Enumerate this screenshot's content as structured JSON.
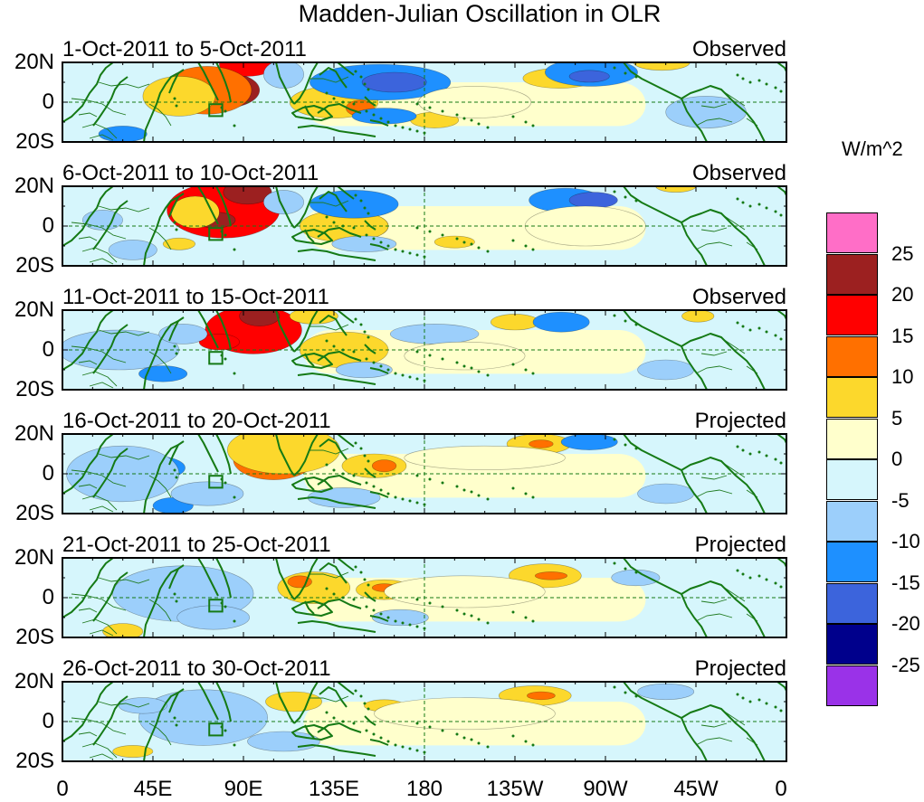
{
  "title": "Madden-Julian Oscillation in OLR",
  "colorbar": {
    "unit": "W/m^2",
    "boxes": [
      {
        "color": "#ff6ec7"
      },
      {
        "color": "#9c2020"
      },
      {
        "color": "#ff0000"
      },
      {
        "color": "#ff7000"
      },
      {
        "color": "#fcd82c"
      },
      {
        "color": "#ffffcc"
      },
      {
        "color": "#d6f6fc"
      },
      {
        "color": "#9ccffb"
      },
      {
        "color": "#1e90ff"
      },
      {
        "color": "#3c64dc"
      },
      {
        "color": "#00008c"
      },
      {
        "color": "#9a32e8"
      }
    ],
    "labels": [
      "25",
      "20",
      "15",
      "10",
      "5",
      "0",
      "-5",
      "-10",
      "-15",
      "-20",
      "-25"
    ]
  },
  "lat_labels": [
    "20N",
    "0",
    "20S"
  ],
  "lon_labels": [
    "0",
    "45E",
    "90E",
    "135E",
    "180",
    "135W",
    "90W",
    "45W",
    "0"
  ],
  "panels": [
    {
      "date_range": "1-Oct-2011 to 5-Oct-2011",
      "status": "Observed",
      "anomalies": [
        {
          "lon": 80,
          "lat": 6,
          "rx": 18,
          "ry": 9,
          "v": 20
        },
        {
          "lon": 92,
          "lat": 19,
          "rx": 14,
          "ry": 6,
          "v": 17
        },
        {
          "lon": 72,
          "lat": 6,
          "rx": 22,
          "ry": 12,
          "v": 12
        },
        {
          "lon": 58,
          "lat": 3,
          "rx": 18,
          "ry": 10,
          "v": 5
        },
        {
          "lon": 135,
          "lat": 0,
          "rx": 22,
          "ry": 8,
          "v": 6
        },
        {
          "lon": 148,
          "lat": -3,
          "rx": 7,
          "ry": 4,
          "v": 11
        },
        {
          "lon": 185,
          "lat": -9,
          "rx": 12,
          "ry": 4,
          "v": 6
        },
        {
          "lon": 247,
          "lat": 12,
          "rx": 18,
          "ry": 5,
          "v": 6
        },
        {
          "lon": 298,
          "lat": 20,
          "rx": 14,
          "ry": 4,
          "v": 9
        },
        {
          "lon": 158,
          "lat": 10,
          "rx": 35,
          "ry": 9,
          "v": -12
        },
        {
          "lon": 165,
          "lat": 10,
          "rx": 16,
          "ry": 5,
          "v": -17
        },
        {
          "lon": 263,
          "lat": 15,
          "rx": 23,
          "ry": 7,
          "v": -13
        },
        {
          "lon": 262,
          "lat": 13,
          "rx": 10,
          "ry": 3,
          "v": -17
        },
        {
          "lon": 160,
          "lat": -7,
          "rx": 16,
          "ry": 4,
          "v": -10
        },
        {
          "lon": 30,
          "lat": -16,
          "rx": 12,
          "ry": 4,
          "v": -13
        },
        {
          "lon": 110,
          "lat": 14,
          "rx": 10,
          "ry": 7,
          "v": -7
        },
        {
          "lon": 320,
          "lat": -5,
          "rx": 20,
          "ry": 8,
          "v": -5
        },
        {
          "lon": 205,
          "lat": 0,
          "rx": 28,
          "ry": 8,
          "v": 3
        }
      ]
    },
    {
      "date_range": "6-Oct-2011 to 10-Oct-2011",
      "status": "Observed",
      "anomalies": [
        {
          "lon": 80,
          "lat": 8,
          "rx": 28,
          "ry": 14,
          "v": 16
        },
        {
          "lon": 92,
          "lat": 17,
          "rx": 12,
          "ry": 6,
          "v": 22
        },
        {
          "lon": 76,
          "lat": 3,
          "rx": 10,
          "ry": 4,
          "v": 21
        },
        {
          "lon": 66,
          "lat": 7,
          "rx": 12,
          "ry": 8,
          "v": 7
        },
        {
          "lon": 150,
          "lat": 0,
          "rx": 12,
          "ry": 6,
          "v": 12
        },
        {
          "lon": 140,
          "lat": 0,
          "rx": 22,
          "ry": 8,
          "v": 6
        },
        {
          "lon": 58,
          "lat": -9,
          "rx": 8,
          "ry": 3,
          "v": 8
        },
        {
          "lon": 195,
          "lat": -8,
          "rx": 10,
          "ry": 3,
          "v": 6
        },
        {
          "lon": 145,
          "lat": 11,
          "rx": 22,
          "ry": 7,
          "v": -12
        },
        {
          "lon": 250,
          "lat": 13,
          "rx": 18,
          "ry": 6,
          "v": -14
        },
        {
          "lon": 264,
          "lat": 13,
          "rx": 12,
          "ry": 4,
          "v": -17
        },
        {
          "lon": 150,
          "lat": -9,
          "rx": 16,
          "ry": 4,
          "v": -8
        },
        {
          "lon": 110,
          "lat": 12,
          "rx": 10,
          "ry": 6,
          "v": -7
        },
        {
          "lon": 35,
          "lat": -12,
          "rx": 12,
          "ry": 5,
          "v": -7
        },
        {
          "lon": 20,
          "lat": 3,
          "rx": 10,
          "ry": 5,
          "v": -7
        },
        {
          "lon": 260,
          "lat": 0,
          "rx": 30,
          "ry": 10,
          "v": 3
        },
        {
          "lon": 305,
          "lat": 20,
          "rx": 10,
          "ry": 3,
          "v": 8
        }
      ]
    },
    {
      "date_range": "11-Oct-2011 to 15-Oct-2011",
      "status": "Observed",
      "anomalies": [
        {
          "lon": 95,
          "lat": 10,
          "rx": 24,
          "ry": 12,
          "v": 17
        },
        {
          "lon": 98,
          "lat": 17,
          "rx": 10,
          "ry": 5,
          "v": 22
        },
        {
          "lon": 78,
          "lat": 4,
          "rx": 10,
          "ry": 4,
          "v": 19
        },
        {
          "lon": 150,
          "lat": 0,
          "rx": 10,
          "ry": 5,
          "v": 12
        },
        {
          "lon": 140,
          "lat": 0,
          "rx": 22,
          "ry": 9,
          "v": 6
        },
        {
          "lon": 125,
          "lat": 17,
          "rx": 12,
          "ry": 4,
          "v": 6
        },
        {
          "lon": 225,
          "lat": 14,
          "rx": 12,
          "ry": 4,
          "v": 6
        },
        {
          "lon": 316,
          "lat": 17,
          "rx": 8,
          "ry": 3,
          "v": 7
        },
        {
          "lon": 28,
          "lat": 0,
          "rx": 30,
          "ry": 10,
          "v": -7
        },
        {
          "lon": 50,
          "lat": -12,
          "rx": 12,
          "ry": 4,
          "v": -12
        },
        {
          "lon": 60,
          "lat": 8,
          "rx": 12,
          "ry": 5,
          "v": -7
        },
        {
          "lon": 248,
          "lat": 14,
          "rx": 14,
          "ry": 5,
          "v": -13
        },
        {
          "lon": 185,
          "lat": 8,
          "rx": 22,
          "ry": 5,
          "v": -7
        },
        {
          "lon": 150,
          "lat": -10,
          "rx": 14,
          "ry": 4,
          "v": -8
        },
        {
          "lon": 300,
          "lat": -10,
          "rx": 14,
          "ry": 5,
          "v": -6
        },
        {
          "lon": 200,
          "lat": -3,
          "rx": 30,
          "ry": 7,
          "v": 2
        }
      ]
    },
    {
      "date_range": "16-Oct-2011 to 20-Oct-2011",
      "status": "Projected",
      "anomalies": [
        {
          "lon": 105,
          "lat": 7,
          "rx": 20,
          "ry": 10,
          "v": 13
        },
        {
          "lon": 103,
          "lat": 13,
          "rx": 8,
          "ry": 4,
          "v": 20
        },
        {
          "lon": 110,
          "lat": 12,
          "rx": 28,
          "ry": 12,
          "v": 6
        },
        {
          "lon": 155,
          "lat": 4,
          "rx": 16,
          "ry": 6,
          "v": 6
        },
        {
          "lon": 160,
          "lat": 4,
          "rx": 6,
          "ry": 3,
          "v": 11
        },
        {
          "lon": 237,
          "lat": 15,
          "rx": 16,
          "ry": 5,
          "v": 7
        },
        {
          "lon": 238,
          "lat": 15,
          "rx": 6,
          "ry": 2,
          "v": 12
        },
        {
          "lon": 210,
          "lat": 8,
          "rx": 40,
          "ry": 6,
          "v": 2
        },
        {
          "lon": 45,
          "lat": 3,
          "rx": 16,
          "ry": 6,
          "v": -12
        },
        {
          "lon": 30,
          "lat": 0,
          "rx": 28,
          "ry": 14,
          "v": -6
        },
        {
          "lon": 55,
          "lat": -16,
          "rx": 10,
          "ry": 4,
          "v": -12
        },
        {
          "lon": 262,
          "lat": 16,
          "rx": 14,
          "ry": 4,
          "v": -12
        },
        {
          "lon": 72,
          "lat": -10,
          "rx": 18,
          "ry": 6,
          "v": -7
        },
        {
          "lon": 140,
          "lat": -12,
          "rx": 18,
          "ry": 5,
          "v": -6
        },
        {
          "lon": 300,
          "lat": -10,
          "rx": 14,
          "ry": 5,
          "v": -6
        }
      ]
    },
    {
      "date_range": "21-Oct-2011 to 25-Oct-2011",
      "status": "Projected",
      "anomalies": [
        {
          "lon": 125,
          "lat": 5,
          "rx": 18,
          "ry": 8,
          "v": 7
        },
        {
          "lon": 118,
          "lat": 8,
          "rx": 6,
          "ry": 3,
          "v": 11
        },
        {
          "lon": 160,
          "lat": 4,
          "rx": 14,
          "ry": 5,
          "v": 6
        },
        {
          "lon": 160,
          "lat": 5,
          "rx": 6,
          "ry": 2,
          "v": 11
        },
        {
          "lon": 240,
          "lat": 11,
          "rx": 18,
          "ry": 6,
          "v": 7
        },
        {
          "lon": 243,
          "lat": 11,
          "rx": 8,
          "ry": 2,
          "v": 12
        },
        {
          "lon": 30,
          "lat": -17,
          "rx": 10,
          "ry": 4,
          "v": 7
        },
        {
          "lon": 200,
          "lat": 3,
          "rx": 40,
          "ry": 8,
          "v": 2
        },
        {
          "lon": 68,
          "lat": 5,
          "rx": 20,
          "ry": 9,
          "v": -12
        },
        {
          "lon": 60,
          "lat": 2,
          "rx": 35,
          "ry": 14,
          "v": -6
        },
        {
          "lon": 75,
          "lat": -10,
          "rx": 18,
          "ry": 6,
          "v": -7
        },
        {
          "lon": 168,
          "lat": -10,
          "rx": 14,
          "ry": 4,
          "v": -7
        },
        {
          "lon": 285,
          "lat": 10,
          "rx": 12,
          "ry": 4,
          "v": -6
        }
      ]
    },
    {
      "date_range": "26-Oct-2011 to 30-Oct-2011",
      "status": "Projected",
      "anomalies": [
        {
          "lon": 160,
          "lat": 8,
          "rx": 10,
          "ry": 3,
          "v": 7
        },
        {
          "lon": 235,
          "lat": 13,
          "rx": 18,
          "ry": 5,
          "v": 7
        },
        {
          "lon": 238,
          "lat": 13,
          "rx": 7,
          "ry": 2,
          "v": 11
        },
        {
          "lon": 115,
          "lat": 10,
          "rx": 14,
          "ry": 5,
          "v": 6
        },
        {
          "lon": 35,
          "lat": -15,
          "rx": 10,
          "ry": 3,
          "v": 7
        },
        {
          "lon": 200,
          "lat": 4,
          "rx": 45,
          "ry": 8,
          "v": 2
        },
        {
          "lon": 75,
          "lat": 5,
          "rx": 18,
          "ry": 8,
          "v": -12
        },
        {
          "lon": 70,
          "lat": 2,
          "rx": 32,
          "ry": 14,
          "v": -6
        },
        {
          "lon": 40,
          "lat": 8,
          "rx": 12,
          "ry": 4,
          "v": -6
        },
        {
          "lon": 110,
          "lat": -10,
          "rx": 18,
          "ry": 5,
          "v": -6
        },
        {
          "lon": 300,
          "lat": 15,
          "rx": 14,
          "ry": 4,
          "v": -5
        }
      ]
    }
  ]
}
